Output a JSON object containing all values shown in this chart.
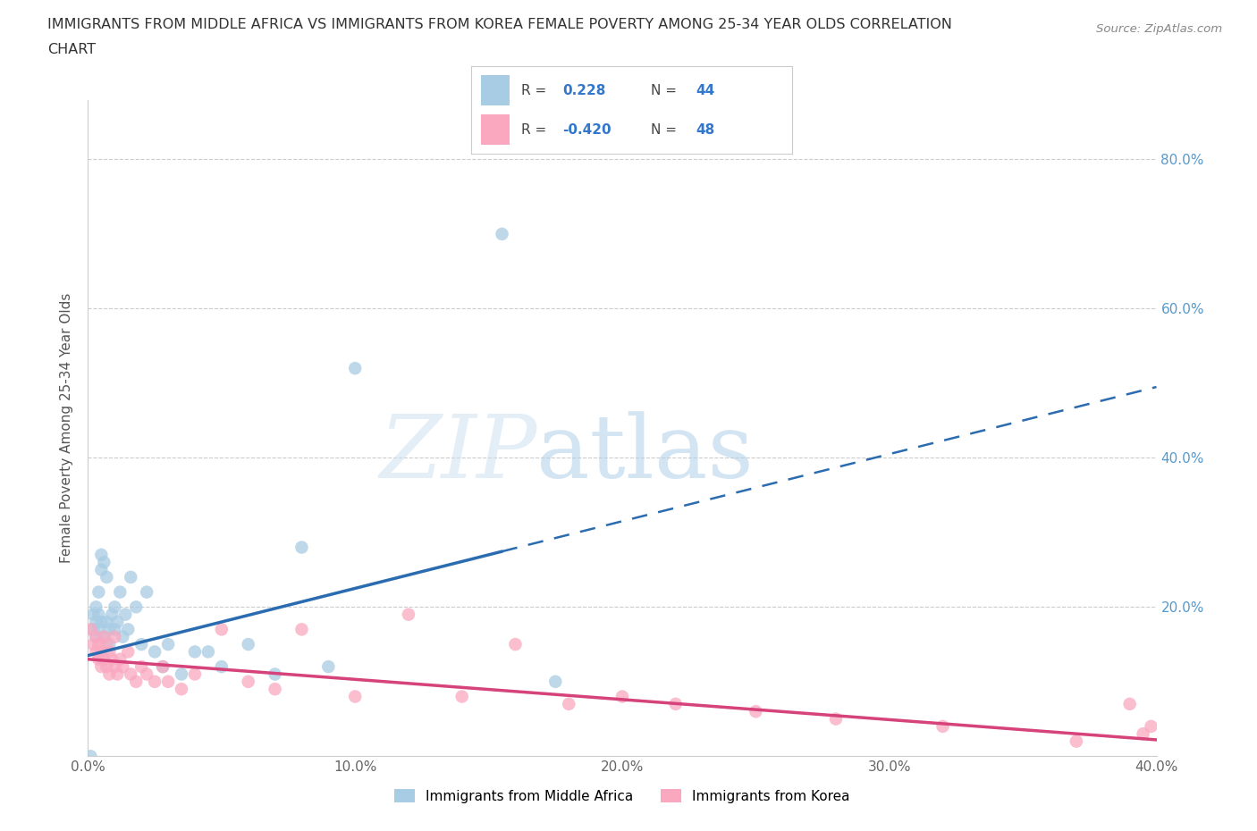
{
  "title_line1": "IMMIGRANTS FROM MIDDLE AFRICA VS IMMIGRANTS FROM KOREA FEMALE POVERTY AMONG 25-34 YEAR OLDS CORRELATION",
  "title_line2": "CHART",
  "source": "Source: ZipAtlas.com",
  "ylabel": "Female Poverty Among 25-34 Year Olds",
  "xlim": [
    0.0,
    0.4
  ],
  "ylim": [
    0.0,
    0.88
  ],
  "xtick_vals": [
    0.0,
    0.1,
    0.2,
    0.3,
    0.4
  ],
  "xtick_labels": [
    "0.0%",
    "10.0%",
    "20.0%",
    "30.0%",
    "40.0%"
  ],
  "ytick_vals": [
    0.0,
    0.2,
    0.4,
    0.6,
    0.8
  ],
  "ytick_labels": [
    "",
    "20.0%",
    "40.0%",
    "60.0%",
    "80.0%"
  ],
  "blue_R": 0.228,
  "blue_N": 44,
  "pink_R": -0.42,
  "pink_N": 48,
  "blue_color": "#a8cce4",
  "blue_line_color": "#2b6cb0",
  "pink_color": "#f9a8c0",
  "pink_line_color": "#d6427a",
  "legend_label_blue": "Immigrants from Middle Africa",
  "legend_label_pink": "Immigrants from Korea",
  "blue_line_solid_end": 0.155,
  "blue_line_x0": 0.0,
  "blue_line_y0": 0.135,
  "blue_line_slope": 0.9,
  "pink_line_x0": 0.0,
  "pink_line_y0": 0.13,
  "pink_line_slope": -0.27,
  "blue_x": [
    0.001,
    0.002,
    0.002,
    0.003,
    0.003,
    0.003,
    0.004,
    0.004,
    0.004,
    0.005,
    0.005,
    0.005,
    0.006,
    0.006,
    0.007,
    0.007,
    0.008,
    0.008,
    0.009,
    0.01,
    0.01,
    0.011,
    0.012,
    0.013,
    0.014,
    0.015,
    0.016,
    0.018,
    0.02,
    0.022,
    0.025,
    0.028,
    0.03,
    0.035,
    0.04,
    0.045,
    0.05,
    0.06,
    0.07,
    0.08,
    0.09,
    0.1,
    0.155,
    0.175
  ],
  "blue_y": [
    0.0,
    0.17,
    0.19,
    0.16,
    0.18,
    0.2,
    0.17,
    0.19,
    0.22,
    0.18,
    0.25,
    0.27,
    0.16,
    0.26,
    0.18,
    0.24,
    0.17,
    0.15,
    0.19,
    0.17,
    0.2,
    0.18,
    0.22,
    0.16,
    0.19,
    0.17,
    0.24,
    0.2,
    0.15,
    0.22,
    0.14,
    0.12,
    0.15,
    0.11,
    0.14,
    0.14,
    0.12,
    0.15,
    0.11,
    0.28,
    0.12,
    0.52,
    0.7,
    0.1
  ],
  "pink_x": [
    0.001,
    0.002,
    0.003,
    0.003,
    0.004,
    0.004,
    0.005,
    0.005,
    0.006,
    0.006,
    0.007,
    0.007,
    0.008,
    0.008,
    0.009,
    0.01,
    0.01,
    0.011,
    0.012,
    0.013,
    0.015,
    0.016,
    0.018,
    0.02,
    0.022,
    0.025,
    0.028,
    0.03,
    0.035,
    0.04,
    0.05,
    0.06,
    0.07,
    0.08,
    0.1,
    0.12,
    0.14,
    0.16,
    0.18,
    0.2,
    0.22,
    0.25,
    0.28,
    0.32,
    0.37,
    0.39,
    0.395,
    0.398
  ],
  "pink_y": [
    0.17,
    0.15,
    0.14,
    0.16,
    0.13,
    0.15,
    0.12,
    0.14,
    0.13,
    0.16,
    0.12,
    0.15,
    0.11,
    0.14,
    0.13,
    0.12,
    0.16,
    0.11,
    0.13,
    0.12,
    0.14,
    0.11,
    0.1,
    0.12,
    0.11,
    0.1,
    0.12,
    0.1,
    0.09,
    0.11,
    0.17,
    0.1,
    0.09,
    0.17,
    0.08,
    0.19,
    0.08,
    0.15,
    0.07,
    0.08,
    0.07,
    0.06,
    0.05,
    0.04,
    0.02,
    0.07,
    0.03,
    0.04
  ]
}
